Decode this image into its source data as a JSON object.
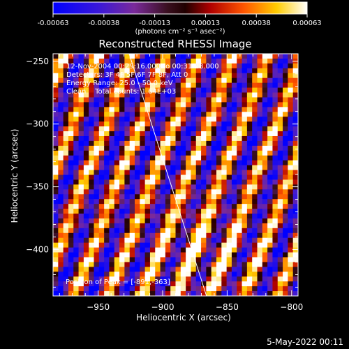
{
  "chart_data": {
    "type": "heatmap",
    "title": "Reconstructed RHESSI Image",
    "xlabel": "Heliocentric X (arcsec)",
    "ylabel": "Heliocentric Y (arcsec)",
    "xlim": [
      -985,
      -795
    ],
    "ylim": [
      -437,
      -244
    ],
    "x_ticks": [
      -950,
      -900,
      -850,
      -800
    ],
    "y_ticks": [
      -400,
      -350,
      -300,
      -250
    ],
    "colorbar": {
      "label": "(photons cm⁻² s⁻¹ asec⁻²)",
      "range": [
        -0.00063,
        0.00063
      ],
      "ticks": [
        "-0.00063",
        "-0.00038",
        "-0.00013",
        "0.00013",
        "0.00038",
        "0.00063"
      ]
    },
    "info_lines": [
      "12-Nov-2004 00:29:16.000 to 00:31:28.000",
      "Detectors: 3F 4F 5F 6F 7F 8F, Att 0",
      "Energy Range: 25.0 - 50.0 keV",
      "Clean    Total counts: 1.64E+03"
    ],
    "peak_text": "Position of Peak = [-891,-363]",
    "limb_line": {
      "from": [
        -926,
        -244
      ],
      "to": [
        -866,
        -437
      ]
    },
    "pattern": {
      "grid_cols": 48,
      "grid_rows": 50
    }
  },
  "footer": {
    "date": "5-May-2022 00:11"
  }
}
